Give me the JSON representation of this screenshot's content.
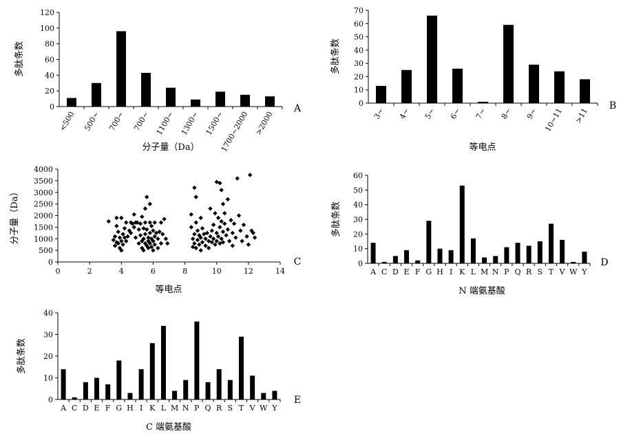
{
  "chart_data": [
    {
      "panel": "A",
      "type": "bar",
      "xlabel": "分子量（Da）",
      "ylabel": "多肽条数",
      "categories": [
        "<500",
        "500~",
        "700~",
        "700~",
        "1100~",
        "1300~",
        "1500~",
        "1700~2000",
        ">2000"
      ],
      "values": [
        11,
        30,
        96,
        43,
        24,
        9,
        19,
        15,
        13
      ],
      "ylim": [
        0,
        120
      ],
      "yticks": [
        "0",
        "20",
        "40",
        "60",
        "80",
        "100",
        "120"
      ],
      "grid": false
    },
    {
      "panel": "B",
      "type": "bar",
      "xlabel": "等电点",
      "ylabel": "多肽条数",
      "categories": [
        "3~",
        "4~",
        "5~",
        "6~",
        "7~",
        "8~",
        "9~",
        "10~11",
        ">11"
      ],
      "values": [
        13,
        25,
        66,
        26,
        1,
        59,
        29,
        24,
        18
      ],
      "ylim": [
        0,
        70
      ],
      "yticks": [
        "0",
        "10",
        "20",
        "30",
        "40",
        "50",
        "60",
        "70"
      ],
      "grid": false
    },
    {
      "panel": "C",
      "type": "scatter",
      "xlabel": "等电点",
      "ylabel": "分子量（Da）",
      "xlim": [
        0,
        14
      ],
      "ylim": [
        0,
        4000
      ],
      "xticks": [
        "0",
        "2",
        "4",
        "6",
        "8",
        "10",
        "12",
        "14"
      ],
      "yticks": [
        "0",
        "500",
        "1000",
        "1500",
        "2000",
        "2500",
        "3000",
        "3500",
        "4000"
      ],
      "grid": false,
      "points": [
        [
          3.2,
          1750
        ],
        [
          3.5,
          950
        ],
        [
          3.6,
          1100
        ],
        [
          3.6,
          700
        ],
        [
          3.7,
          1900
        ],
        [
          3.7,
          1550
        ],
        [
          3.7,
          850
        ],
        [
          3.8,
          1300
        ],
        [
          3.8,
          800
        ],
        [
          3.9,
          1050
        ],
        [
          3.9,
          600
        ],
        [
          4.0,
          1900
        ],
        [
          4.0,
          900
        ],
        [
          4.0,
          500
        ],
        [
          4.1,
          1200
        ],
        [
          4.1,
          750
        ],
        [
          4.2,
          1050
        ],
        [
          4.2,
          1450
        ],
        [
          4.3,
          1700
        ],
        [
          4.3,
          900
        ],
        [
          4.4,
          1100
        ],
        [
          4.5,
          1350
        ],
        [
          4.6,
          1700
        ],
        [
          4.6,
          1250
        ],
        [
          4.7,
          1650
        ],
        [
          4.8,
          2050
        ],
        [
          4.8,
          1500
        ],
        [
          4.9,
          1050
        ],
        [
          4.9,
          1700
        ],
        [
          5.0,
          1700
        ],
        [
          5.1,
          1400
        ],
        [
          5.1,
          800
        ],
        [
          5.2,
          1650
        ],
        [
          5.2,
          1150
        ],
        [
          5.3,
          1950
        ],
        [
          5.3,
          900
        ],
        [
          5.3,
          600
        ],
        [
          5.4,
          1450
        ],
        [
          5.4,
          1000
        ],
        [
          5.4,
          500
        ],
        [
          5.5,
          2300
        ],
        [
          5.5,
          1700
        ],
        [
          5.5,
          1200
        ],
        [
          5.5,
          800
        ],
        [
          5.6,
          1400
        ],
        [
          5.6,
          700
        ],
        [
          5.6,
          2800
        ],
        [
          5.7,
          1050
        ],
        [
          5.7,
          900
        ],
        [
          5.7,
          600
        ],
        [
          5.8,
          2500
        ],
        [
          5.8,
          1700
        ],
        [
          5.8,
          1250
        ],
        [
          5.8,
          800
        ],
        [
          5.9,
          1550
        ],
        [
          5.9,
          1000
        ],
        [
          5.9,
          650
        ],
        [
          6.0,
          1350
        ],
        [
          6.0,
          900
        ],
        [
          6.0,
          500
        ],
        [
          6.1,
          1700
        ],
        [
          6.1,
          1100
        ],
        [
          6.1,
          750
        ],
        [
          6.2,
          1250
        ],
        [
          6.3,
          1000
        ],
        [
          6.3,
          600
        ],
        [
          6.4,
          1300
        ],
        [
          6.5,
          1700
        ],
        [
          6.5,
          800
        ],
        [
          6.6,
          1200
        ],
        [
          6.7,
          1850
        ],
        [
          6.8,
          1000
        ],
        [
          6.9,
          800
        ],
        [
          8.4,
          2050
        ],
        [
          8.4,
          1500
        ],
        [
          8.5,
          1000
        ],
        [
          8.5,
          650
        ],
        [
          8.6,
          3200
        ],
        [
          8.6,
          1200
        ],
        [
          8.6,
          800
        ],
        [
          8.7,
          2800
        ],
        [
          8.7,
          1700
        ],
        [
          8.7,
          600
        ],
        [
          8.8,
          1350
        ],
        [
          8.8,
          950
        ],
        [
          8.9,
          1150
        ],
        [
          8.9,
          750
        ],
        [
          9.0,
          1900
        ],
        [
          9.0,
          1050
        ],
        [
          9.0,
          500
        ],
        [
          9.1,
          1450
        ],
        [
          9.1,
          850
        ],
        [
          9.2,
          1200
        ],
        [
          9.3,
          1000
        ],
        [
          9.3,
          700
        ],
        [
          9.4,
          1250
        ],
        [
          9.5,
          900
        ],
        [
          9.5,
          600
        ],
        [
          9.6,
          1100
        ],
        [
          9.6,
          2300
        ],
        [
          9.7,
          850
        ],
        [
          9.7,
          1350
        ],
        [
          9.8,
          1600
        ],
        [
          9.8,
          1000
        ],
        [
          9.9,
          2100
        ],
        [
          9.9,
          750
        ],
        [
          10.0,
          3450
        ],
        [
          10.0,
          1250
        ],
        [
          10.0,
          900
        ],
        [
          10.1,
          1900
        ],
        [
          10.1,
          1100
        ],
        [
          10.2,
          3400
        ],
        [
          10.2,
          1500
        ],
        [
          10.2,
          800
        ],
        [
          10.3,
          3100
        ],
        [
          10.3,
          1750
        ],
        [
          10.3,
          1000
        ],
        [
          10.4,
          2500
        ],
        [
          10.4,
          1300
        ],
        [
          10.4,
          850
        ],
        [
          10.5,
          1650
        ],
        [
          10.5,
          2100
        ],
        [
          10.6,
          1150
        ],
        [
          10.7,
          2700
        ],
        [
          10.7,
          1400
        ],
        [
          10.8,
          900
        ],
        [
          10.9,
          1800
        ],
        [
          11.0,
          1250
        ],
        [
          11.0,
          700
        ],
        [
          11.1,
          1650
        ],
        [
          11.2,
          1050
        ],
        [
          11.3,
          3600
        ],
        [
          11.4,
          2000
        ],
        [
          11.5,
          1350
        ],
        [
          11.6,
          900
        ],
        [
          11.7,
          1600
        ],
        [
          11.9,
          1100
        ],
        [
          12.0,
          750
        ],
        [
          12.1,
          3750
        ],
        [
          12.2,
          1350
        ],
        [
          12.3,
          1250
        ],
        [
          12.4,
          1050
        ]
      ]
    },
    {
      "panel": "D",
      "type": "bar",
      "xlabel": "N 端氨基酸",
      "ylabel": "多肽条数",
      "categories": [
        "A",
        "C",
        "D",
        "E",
        "F",
        "G",
        "H",
        "I",
        "K",
        "L",
        "M",
        "N",
        "P",
        "Q",
        "R",
        "S",
        "T",
        "V",
        "W",
        "Y"
      ],
      "values": [
        14,
        1,
        5,
        9,
        2,
        29,
        10,
        9,
        53,
        17,
        4,
        5,
        11,
        14,
        12,
        15,
        27,
        16,
        1,
        8
      ],
      "ylim": [
        0,
        60
      ],
      "yticks": [
        "0",
        "10",
        "20",
        "30",
        "40",
        "50",
        "60"
      ],
      "grid": false
    },
    {
      "panel": "E",
      "type": "bar",
      "xlabel": "C 端氨基酸",
      "ylabel": "多肽条数",
      "categories": [
        "A",
        "C",
        "D",
        "E",
        "F",
        "G",
        "H",
        "I",
        "K",
        "L",
        "M",
        "N",
        "P",
        "Q",
        "R",
        "S",
        "T",
        "V",
        "W",
        "Y"
      ],
      "values": [
        14,
        1,
        8,
        10,
        7,
        18,
        3,
        14,
        26,
        34,
        4,
        9,
        36,
        8,
        14,
        9,
        29,
        11,
        3,
        4
      ],
      "ylim": [
        0,
        40
      ],
      "yticks": [
        "0",
        "10",
        "20",
        "30",
        "40"
      ],
      "grid": false
    }
  ]
}
